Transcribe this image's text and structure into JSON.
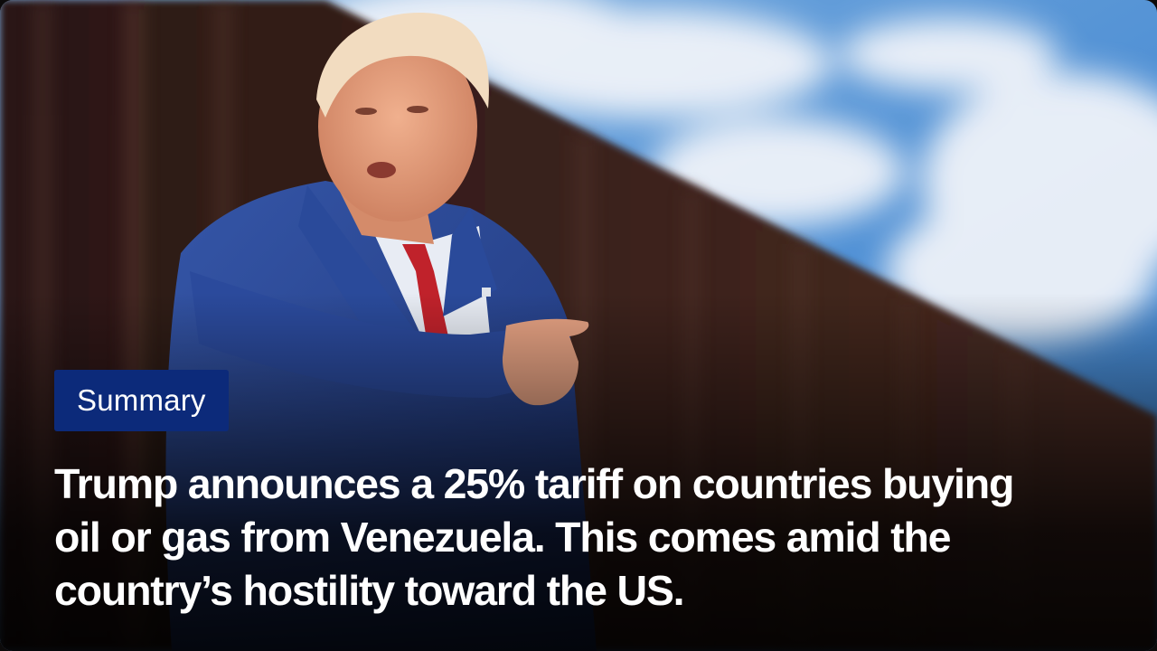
{
  "badge": {
    "label": "Summary",
    "color": "#0c2a7a"
  },
  "headline": "Trump announces a 25% tariff on countries buying oil or gas from Venezuela. This comes amid the country’s hostility toward the US.",
  "photo": {
    "subject": "man-in-blue-suit-pointing"
  }
}
